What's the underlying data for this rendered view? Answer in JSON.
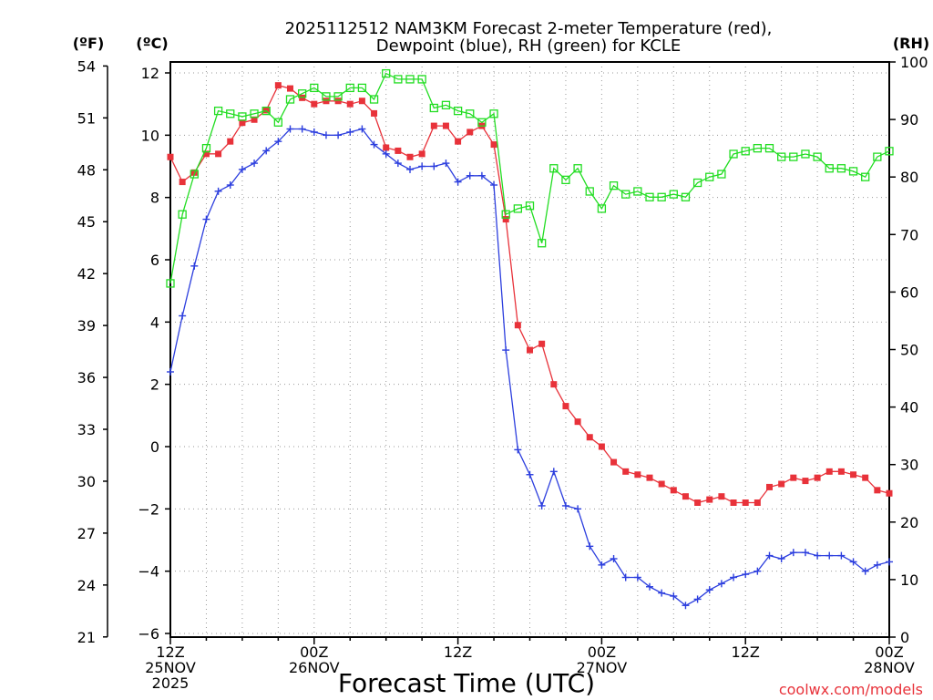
{
  "chart_data": {
    "type": "line",
    "title_line1": "2025112512 NAM3KM Forecast 2-meter Temperature (red),",
    "title_line2": "Dewpoint (blue), RH (green) for KCLE",
    "left_outer_unit": "(ºF)",
    "left_inner_unit": "(ºC)",
    "right_unit": "(RH)",
    "xlabel": "Forecast Time (UTC)",
    "credit": "coolwx.com/models",
    "x_range_hours": [
      0,
      60
    ],
    "x_ticks": [
      {
        "h": 0,
        "l1": "12Z",
        "l2": "25NOV",
        "l3": "2025"
      },
      {
        "h": 12,
        "l1": "00Z",
        "l2": "26NOV",
        "l3": ""
      },
      {
        "h": 24,
        "l1": "12Z",
        "l2": "",
        "l3": ""
      },
      {
        "h": 36,
        "l1": "00Z",
        "l2": "27NOV",
        "l3": ""
      },
      {
        "h": 48,
        "l1": "12Z",
        "l2": "",
        "l3": ""
      },
      {
        "h": 60,
        "l1": "00Z",
        "l2": "28NOV",
        "l3": ""
      }
    ],
    "celsius_axis": {
      "min": -6,
      "max": 12.5,
      "ticks": [
        "-6",
        "-4",
        "-2",
        "0",
        "2",
        "4",
        "6",
        "8",
        "10",
        "12"
      ]
    },
    "fahrenheit_ticks": [
      "21",
      "24",
      "27",
      "30",
      "33",
      "36",
      "39",
      "42",
      "45",
      "48",
      "51",
      "54"
    ],
    "rh_axis": {
      "min": 0,
      "max": 100,
      "ticks": [
        "0",
        "10",
        "20",
        "30",
        "40",
        "50",
        "60",
        "70",
        "80",
        "90",
        "100"
      ]
    },
    "series": [
      {
        "name": "Temperature",
        "color": "#e8323a",
        "marker": "filled-square",
        "axis": "celsius",
        "values": [
          9.3,
          8.5,
          8.8,
          9.4,
          9.4,
          9.8,
          10.4,
          10.5,
          10.8,
          11.6,
          11.5,
          11.2,
          11.0,
          11.1,
          11.1,
          11.0,
          11.1,
          10.7,
          9.6,
          9.5,
          9.3,
          9.4,
          10.3,
          10.3,
          9.8,
          10.1,
          10.3,
          9.7,
          7.3,
          3.9,
          3.1,
          3.3,
          2.0,
          1.3,
          0.8,
          0.3,
          0.0,
          -0.5,
          -0.8,
          -0.9,
          -1.0,
          -1.2,
          -1.4,
          -1.6,
          -1.8,
          -1.7,
          -1.6,
          -1.8,
          -1.8,
          -1.8,
          -1.3,
          -1.2,
          -1.0,
          -1.1,
          -1.0,
          -0.8,
          -0.8,
          -0.9,
          -1.0,
          -1.4,
          -1.5
        ]
      },
      {
        "name": "Dewpoint",
        "color": "#2c3ede",
        "marker": "plus",
        "axis": "celsius",
        "values": [
          2.4,
          4.2,
          5.8,
          7.3,
          8.2,
          8.4,
          8.9,
          9.1,
          9.5,
          9.8,
          10.2,
          10.2,
          10.1,
          10.0,
          10.0,
          10.1,
          10.2,
          9.7,
          9.4,
          9.1,
          8.9,
          9.0,
          9.0,
          9.1,
          8.5,
          8.7,
          8.7,
          8.4,
          3.1,
          -0.1,
          -0.9,
          -1.9,
          -0.8,
          -1.9,
          -2.0,
          -3.2,
          -3.8,
          -3.6,
          -4.2,
          -4.2,
          -4.5,
          -4.7,
          -4.8,
          -5.1,
          -4.9,
          -4.6,
          -4.4,
          -4.2,
          -4.1,
          -4.0,
          -3.5,
          -3.6,
          -3.4,
          -3.4,
          -3.5,
          -3.5,
          -3.5,
          -3.7,
          -4.0,
          -3.8,
          -3.7
        ]
      },
      {
        "name": "RH",
        "color": "#22dd22",
        "marker": "open-square",
        "axis": "rh",
        "values": [
          61.5,
          73.5,
          80.5,
          85.0,
          91.5,
          91.0,
          90.5,
          91.0,
          91.5,
          89.5,
          93.5,
          94.5,
          95.5,
          94.0,
          94.0,
          95.5,
          95.5,
          93.5,
          98.0,
          97.0,
          97.0,
          97.0,
          92.0,
          92.5,
          91.5,
          91.0,
          89.5,
          91.0,
          73.5,
          74.5,
          75.0,
          68.5,
          81.5,
          79.5,
          81.5,
          77.5,
          74.5,
          78.5,
          77.0,
          77.5,
          76.5,
          76.5,
          77.0,
          76.5,
          79.0,
          80.0,
          80.5,
          84.0,
          84.5,
          85.0,
          85.0,
          83.5,
          83.5,
          84.0,
          83.5,
          81.5,
          81.5,
          81.0,
          80.0,
          83.5,
          84.5
        ]
      }
    ]
  }
}
